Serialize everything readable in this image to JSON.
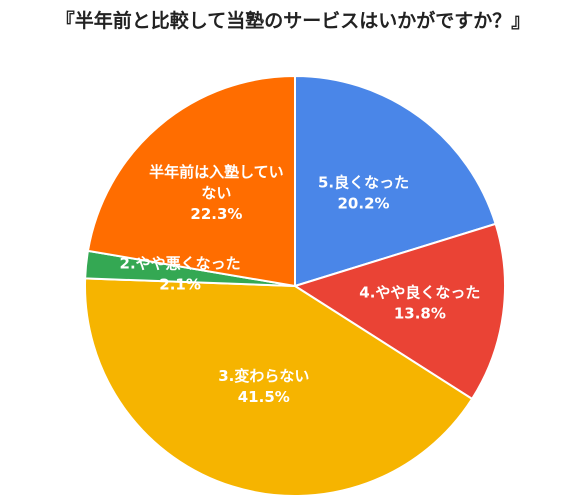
{
  "title": "『半年前と比較して当塾のサービスはいかがですか？』",
  "chart_data": {
    "type": "pie",
    "title": "『半年前と比較して当塾のサービスはいかがですか？』",
    "start_angle_deg": 0,
    "direction": "clockwise",
    "slices": [
      {
        "label_lines": [
          "5.良くなった"
        ],
        "value": 20.2,
        "value_label": "20.2%",
        "color": "#4a86e8"
      },
      {
        "label_lines": [
          "4.やや良くなった"
        ],
        "value": 13.8,
        "value_label": "13.8%",
        "color": "#ea4335"
      },
      {
        "label_lines": [
          "3.変わらない"
        ],
        "value": 41.5,
        "value_label": "41.5%",
        "color": "#f6b400"
      },
      {
        "label_lines": [
          "2.やや悪くなった"
        ],
        "value": 2.1,
        "value_label": "2.1%",
        "color": "#34a853"
      },
      {
        "label_lines": [
          "半年前は入塾してい",
          "ない"
        ],
        "value": 22.3,
        "value_label": "22.3%",
        "color": "#ff6d00"
      }
    ]
  }
}
